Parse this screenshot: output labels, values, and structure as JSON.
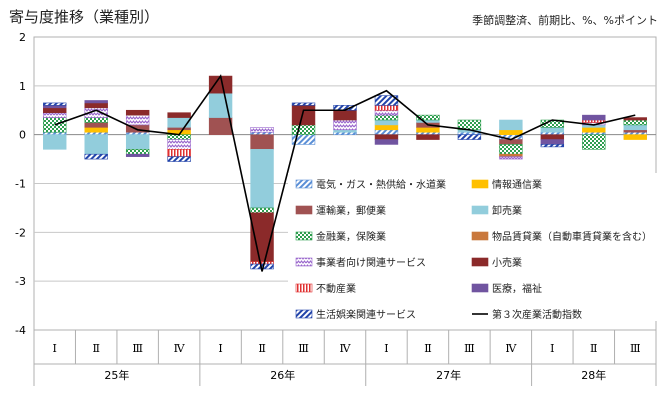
{
  "title": "寄与度推移（業種別）",
  "note": "季節調整済、前期比、%、%ポイント",
  "chart_data": {
    "type": "bar",
    "stacked": true,
    "ylim": [
      -4,
      2
    ],
    "yticks": [
      "2",
      "1",
      "0",
      "-1",
      "-2",
      "-3",
      "-4"
    ],
    "categories": [
      "Ⅰ",
      "Ⅱ",
      "Ⅲ",
      "Ⅳ",
      "Ⅰ",
      "Ⅱ",
      "Ⅲ",
      "Ⅳ",
      "Ⅰ",
      "Ⅱ",
      "Ⅲ",
      "Ⅳ",
      "Ⅰ",
      "Ⅱ",
      "Ⅲ"
    ],
    "year_groups": [
      {
        "label": "25年",
        "span": 4
      },
      {
        "label": "26年",
        "span": 4
      },
      {
        "label": "27年",
        "span": 4
      },
      {
        "label": "28年",
        "span": 3
      }
    ],
    "series": [
      {
        "name": "電気・ガス・熱供給・水道業",
        "color": "#5b8fd6",
        "pattern": "hatch",
        "values": [
          0.05,
          0.05,
          0.05,
          0.0,
          0.0,
          0.05,
          -0.2,
          0.05,
          0.1,
          0.05,
          0.05,
          -0.1,
          0.05,
          0.05,
          0.05
        ]
      },
      {
        "name": "情報通信業",
        "color": "#ffc000",
        "pattern": "solid",
        "values": [
          0.0,
          0.1,
          0.0,
          0.1,
          0.0,
          0.0,
          0.0,
          0.0,
          0.1,
          0.1,
          0.0,
          0.1,
          0.0,
          0.1,
          -0.1
        ]
      },
      {
        "name": "運輸業，郵便業",
        "color": "#a05252",
        "pattern": "solid",
        "values": [
          0.0,
          0.1,
          0.15,
          0.05,
          0.35,
          -0.3,
          0.0,
          0.0,
          0.0,
          0.1,
          0.0,
          -0.1,
          0.0,
          0.0,
          0.05
        ]
      },
      {
        "name": "卸売業",
        "color": "#92cddc",
        "pattern": "solid",
        "values": [
          -0.3,
          -0.4,
          -0.3,
          0.2,
          0.5,
          -1.2,
          0.0,
          0.05,
          0.1,
          0.05,
          0.05,
          0.2,
          0.1,
          0.05,
          0.1
        ]
      },
      {
        "name": "金融業，保険業",
        "color": "#2e9e4f",
        "pattern": "check",
        "values": [
          0.3,
          0.1,
          -0.1,
          -0.1,
          0.0,
          -0.1,
          0.2,
          0.0,
          0.1,
          0.1,
          0.2,
          -0.2,
          0.15,
          -0.3,
          0.1
        ]
      },
      {
        "name": "物品賃貸業（自動車賃貸業を含む）",
        "color": "#c9783c",
        "pattern": "solid",
        "values": [
          0.0,
          0.0,
          0.0,
          0.0,
          0.0,
          0.0,
          0.0,
          0.0,
          0.0,
          0.0,
          0.0,
          -0.05,
          0.0,
          0.0,
          0.0
        ]
      },
      {
        "name": "事業者向け関連サービス",
        "color": "#9966cc",
        "pattern": "zigzag",
        "values": [
          0.1,
          0.2,
          0.2,
          -0.2,
          0.0,
          0.1,
          0.0,
          0.2,
          0.1,
          0.0,
          0.0,
          -0.05,
          0.0,
          0.05,
          0.0
        ]
      },
      {
        "name": "小売業",
        "color": "#8b2a2a",
        "pattern": "solid",
        "values": [
          0.1,
          0.1,
          0.1,
          0.1,
          0.35,
          -1.0,
          0.4,
          0.2,
          -0.1,
          -0.1,
          0.0,
          0.0,
          -0.1,
          0.0,
          0.05
        ]
      },
      {
        "name": "不動産業",
        "color": "#e03030",
        "pattern": "vline",
        "values": [
          0.0,
          0.0,
          0.0,
          -0.15,
          0.0,
          -0.05,
          0.0,
          0.0,
          0.1,
          0.0,
          0.0,
          0.0,
          0.0,
          0.05,
          0.0
        ]
      },
      {
        "name": "医療，福祉",
        "color": "#7054a0",
        "pattern": "solid",
        "values": [
          0.05,
          0.05,
          -0.05,
          0.0,
          0.0,
          0.0,
          0.0,
          0.0,
          -0.1,
          0.0,
          0.0,
          0.0,
          -0.1,
          0.1,
          0.0
        ]
      },
      {
        "name": "生活娯楽関連サービス",
        "color": "#2244aa",
        "pattern": "hatch",
        "values": [
          0.05,
          -0.1,
          0.0,
          -0.1,
          0.0,
          -0.1,
          0.05,
          0.1,
          0.2,
          0.0,
          -0.1,
          0.0,
          -0.05,
          0.0,
          0.0
        ]
      },
      {
        "name": "第３次産業活動指数",
        "color": "#000000",
        "type": "line",
        "values": [
          0.2,
          0.5,
          0.1,
          0.0,
          1.2,
          -2.8,
          0.5,
          0.5,
          0.9,
          0.2,
          0.1,
          -0.1,
          0.3,
          0.2,
          0.4
        ]
      }
    ]
  }
}
